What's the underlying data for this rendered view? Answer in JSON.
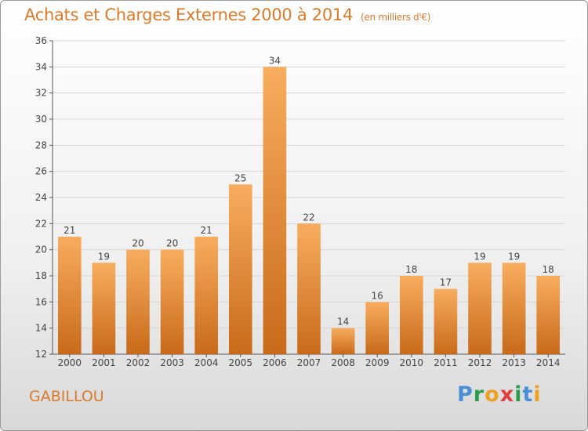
{
  "title": "Achats et Charges Externes 2000 à 2014",
  "unit": "(en milliers d'€)",
  "commune": "GABILLOU",
  "logo": {
    "text": "Proxiti",
    "colors": [
      "#4a8fd6",
      "#2e9e4e",
      "#f0a020",
      "#e04040",
      "#2e9e4e",
      "#4a8fd6",
      "#f0a020"
    ]
  },
  "chart_data": {
    "type": "bar",
    "title": "Achats et Charges Externes 2000 à 2014",
    "subtitle": "(en milliers d'€)",
    "xlabel": "",
    "ylabel": "",
    "categories": [
      "2000",
      "2001",
      "2002",
      "2003",
      "2004",
      "2005",
      "2006",
      "2007",
      "2008",
      "2009",
      "2010",
      "2011",
      "2012",
      "2013",
      "2014"
    ],
    "values": [
      21,
      19,
      20,
      20,
      21,
      25,
      34,
      22,
      14,
      16,
      18,
      17,
      19,
      19,
      18
    ],
    "ylim": [
      12,
      36
    ],
    "yticks": [
      12,
      14,
      16,
      18,
      20,
      22,
      24,
      26,
      28,
      30,
      32,
      34,
      36
    ],
    "grid": true,
    "bar_color": "#f0943a",
    "bar_color_light": "#f8ad5e",
    "bar_color_dark": "#c86a1a"
  }
}
